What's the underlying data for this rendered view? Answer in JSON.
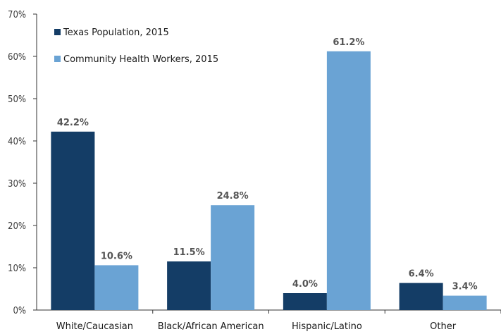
{
  "chart_data": {
    "type": "bar",
    "categories": [
      "White/Caucasian",
      "Black/African American",
      "Hispanic/Latino",
      "Other"
    ],
    "series": [
      {
        "name": "Texas Population, 2015",
        "values": [
          42.2,
          11.5,
          4.0,
          6.4
        ],
        "color": "#143d66"
      },
      {
        "name": "Community Health Workers, 2015",
        "values": [
          10.6,
          24.8,
          61.2,
          3.4
        ],
        "color": "#6aa3d4"
      }
    ],
    "data_labels": [
      [
        "42.2%",
        "11.5%",
        "4.0%",
        "6.4%"
      ],
      [
        "10.6%",
        "24.8%",
        "61.2%",
        "3.4%"
      ]
    ],
    "y_ticks": [
      "0%",
      "10%",
      "20%",
      "30%",
      "40%",
      "50%",
      "60%",
      "70%"
    ],
    "ylim": [
      0,
      70
    ],
    "legend_position": "top-left",
    "grid": false
  }
}
